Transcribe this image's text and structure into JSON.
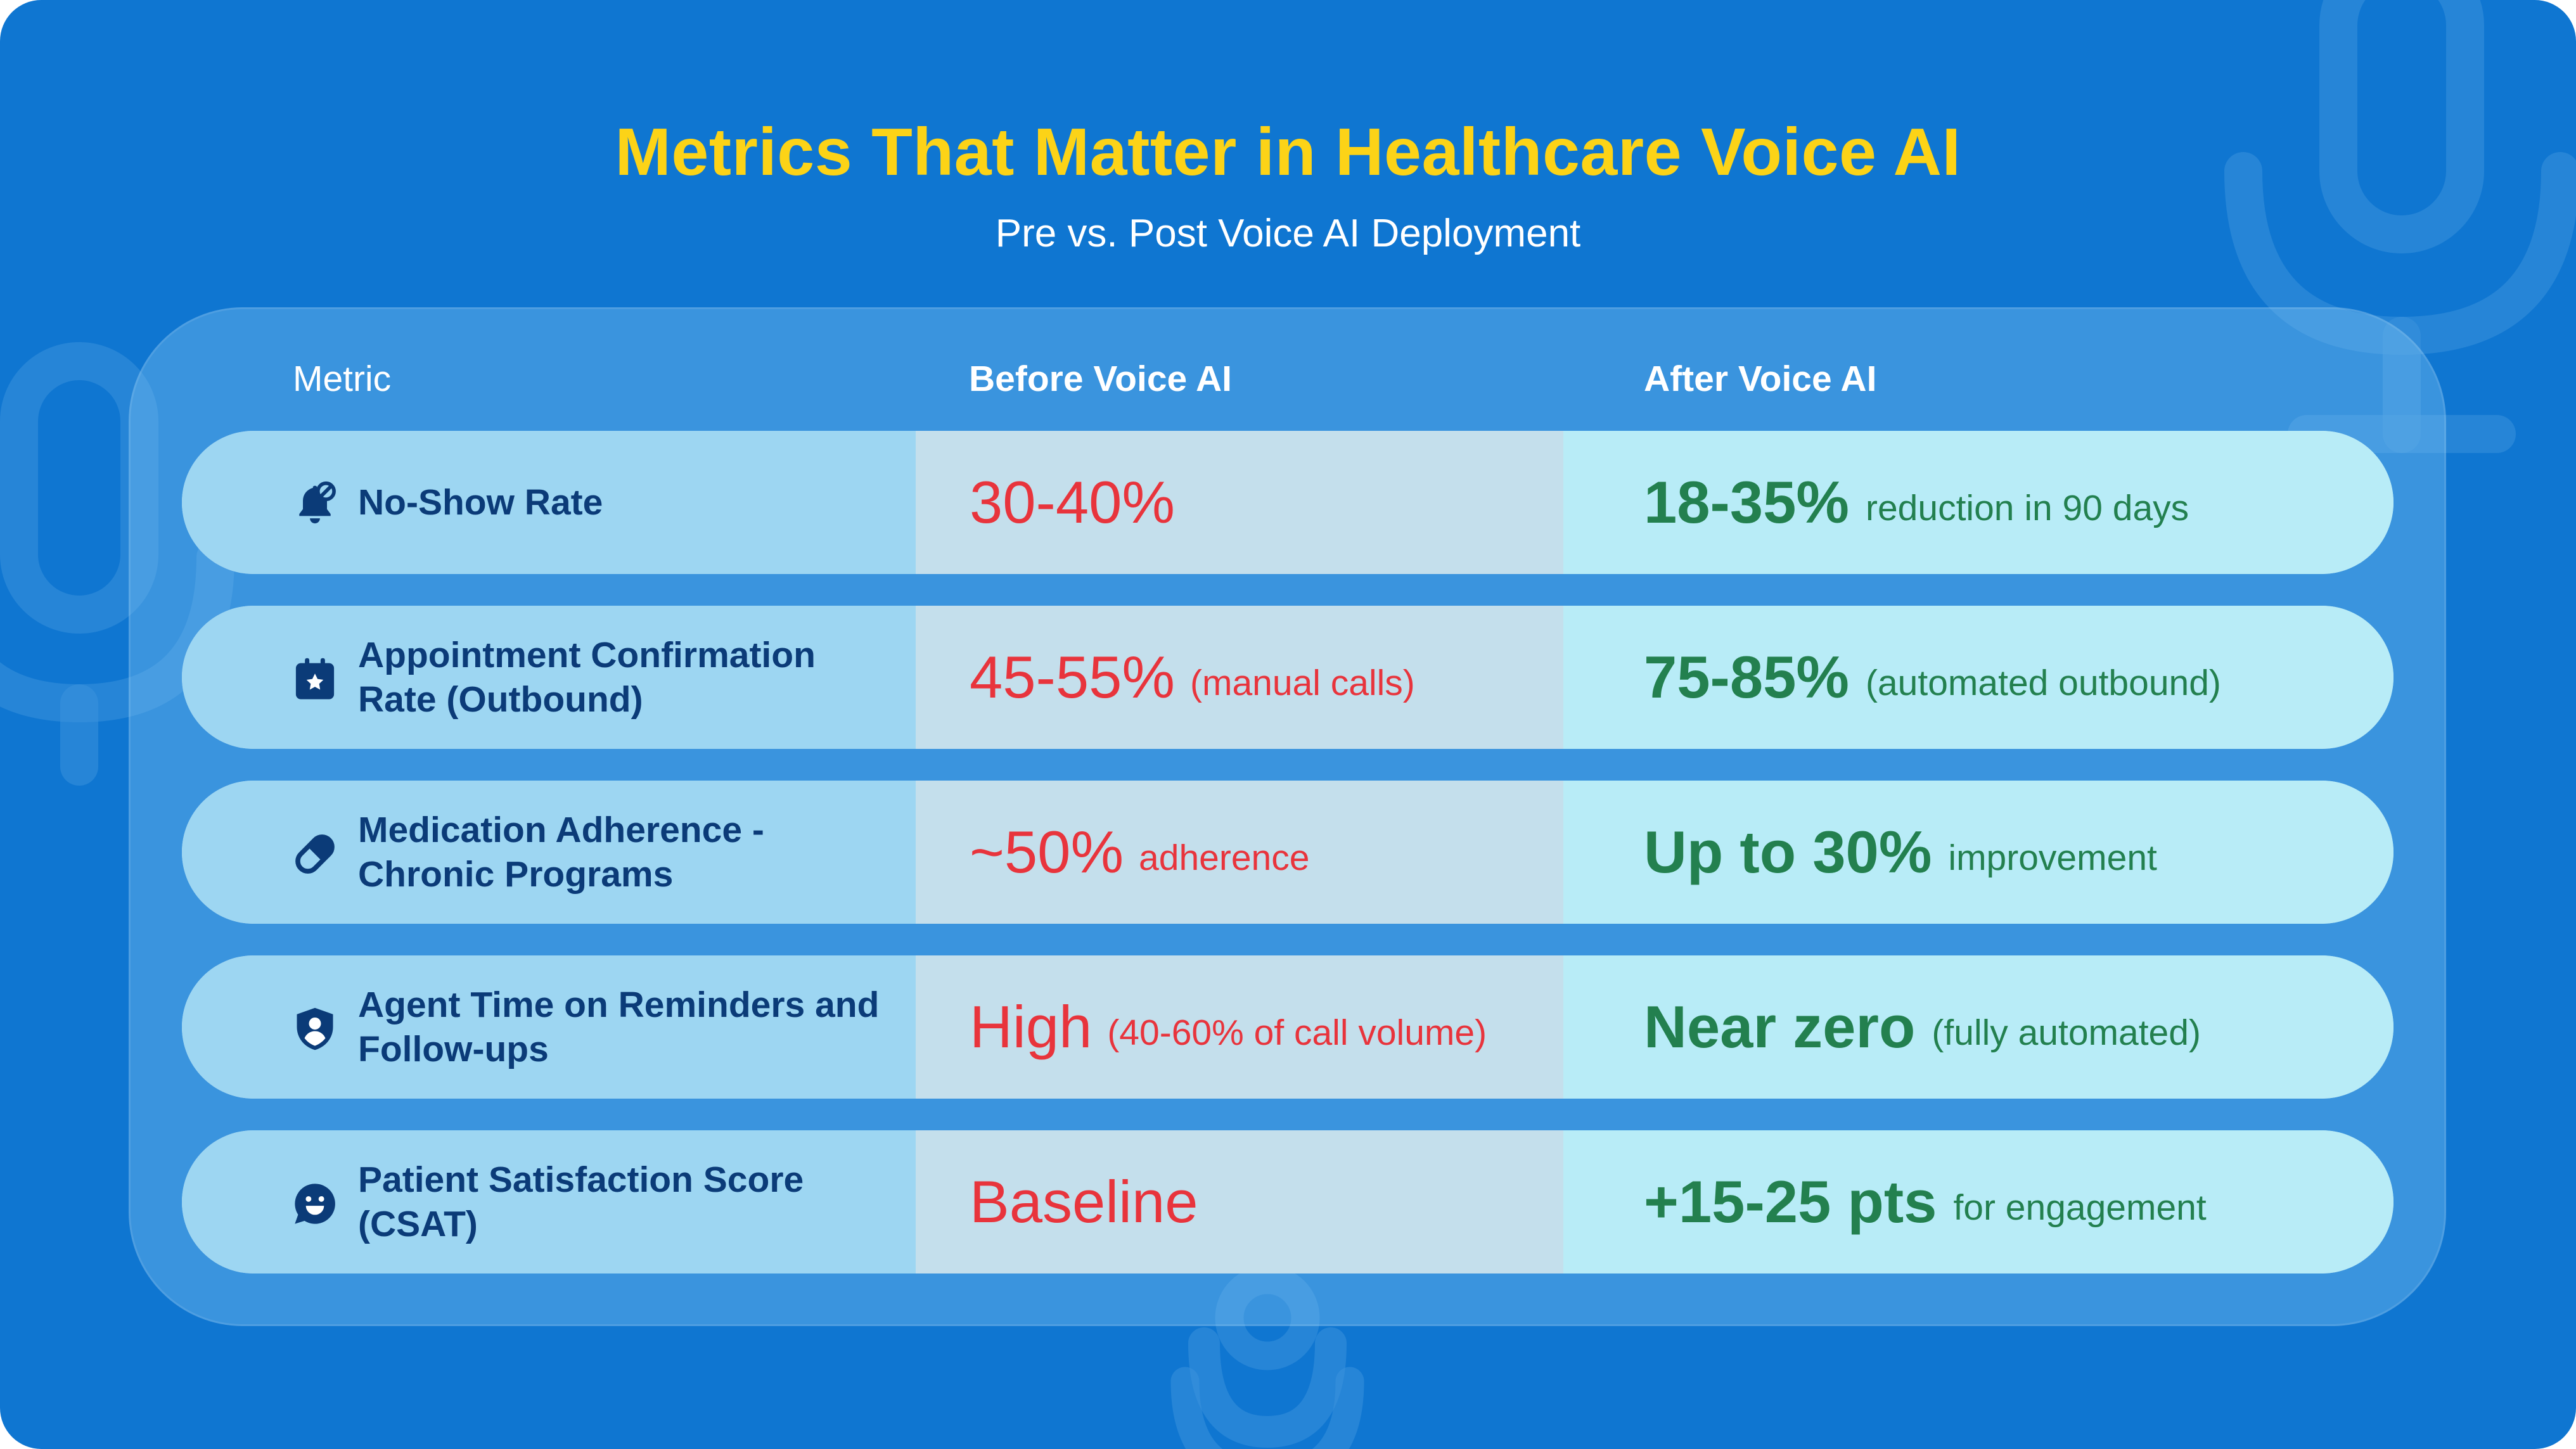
{
  "title": "Metrics That Matter in Healthcare Voice AI",
  "subtitle": "Pre vs. Post Voice AI Deployment",
  "colors": {
    "background": "#0f76d1",
    "title": "#fcd317",
    "label": "#0b3b78",
    "before": "#e8343c",
    "after": "#23804f"
  },
  "table": {
    "headers": {
      "metric": "Metric",
      "before": "Before Voice AI",
      "after": "After Voice AI"
    },
    "rows": [
      {
        "icon": "bell-icon",
        "metric": "No-Show Rate",
        "before_value": "30-40%",
        "before_note": "",
        "after_value": "18-35%",
        "after_note": "reduction in 90 days"
      },
      {
        "icon": "calendar-star-icon",
        "metric": "Appointment Confirmation Rate (Outbound)",
        "before_value": "45-55%",
        "before_note": "(manual calls)",
        "after_value": "75-85%",
        "after_note": "(automated outbound)"
      },
      {
        "icon": "pill-icon",
        "metric": "Medication Adherence - Chronic Programs",
        "before_value": "~50%",
        "before_note": "adherence",
        "after_value": "Up to 30%",
        "after_note": "improvement"
      },
      {
        "icon": "user-shield-icon",
        "metric": "Agent Time on Reminders and Follow-ups",
        "before_value": "High",
        "before_note": "(40-60% of call volume)",
        "after_value": "Near zero",
        "after_note": "(fully automated)"
      },
      {
        "icon": "smiley-chat-icon",
        "metric": "Patient Satisfaction Score (CSAT)",
        "before_value": "Baseline",
        "before_note": "",
        "after_value": "+15-25 pts",
        "after_note": "for engagement"
      }
    ]
  }
}
